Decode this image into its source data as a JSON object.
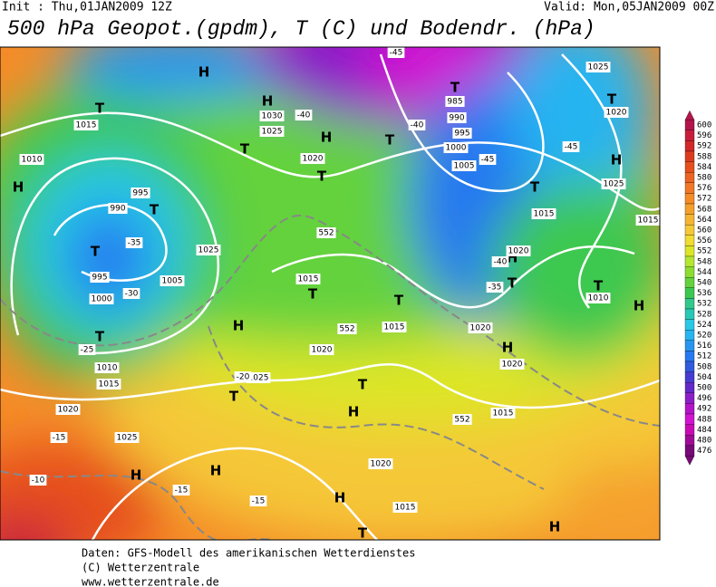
{
  "header": {
    "init": "Init : Thu,01JAN2009 12Z",
    "valid": "Valid: Mon,05JAN2009 00Z",
    "title": "500 hPa Geopot.(gpdm), T (C) und Bodendr. (hPa)"
  },
  "legend": {
    "levels": [
      600,
      596,
      592,
      588,
      584,
      580,
      576,
      572,
      568,
      564,
      560,
      556,
      552,
      548,
      544,
      540,
      536,
      532,
      528,
      524,
      520,
      516,
      512,
      508,
      504,
      500,
      496,
      492,
      488,
      484,
      480,
      476
    ],
    "colors": [
      "#b4144c",
      "#c81e3c",
      "#d22828",
      "#dc3c1e",
      "#e6501e",
      "#eb6423",
      "#f07828",
      "#f58c28",
      "#f5a02d",
      "#f5b432",
      "#f5c837",
      "#f0dc32",
      "#dce628",
      "#b4e632",
      "#8cdc32",
      "#64d23c",
      "#3cc850",
      "#32c88c",
      "#28c8b4",
      "#28c8e6",
      "#28b4f0",
      "#2896f0",
      "#2878f0",
      "#325adc",
      "#463cd2",
      "#6428c8",
      "#8c1ec8",
      "#b414c8",
      "#d214d2",
      "#c80ab4",
      "#a00a96",
      "#780a78"
    ]
  },
  "map": {
    "labels": [
      "H",
      "H",
      "T",
      "T",
      "985",
      "990",
      "995",
      "1000",
      "1005",
      "T",
      "H",
      "T",
      "T",
      "H",
      "T",
      "990",
      "995",
      "T",
      "995",
      "1000",
      "1005",
      "T",
      "1010",
      "1015",
      "1020",
      "1025",
      "H",
      "H",
      "H",
      "T",
      "1025",
      "1025",
      "1015",
      "T",
      "1020",
      "T",
      "1015",
      "H",
      "T",
      "1020",
      "H",
      "T",
      "1015",
      "H",
      "-10",
      "-15",
      "-15",
      "-15",
      "-20",
      "-25",
      "-30",
      "-35",
      "-40",
      "-40",
      "-45",
      "-45",
      "-45",
      "H",
      "T",
      "1020",
      "1025",
      "1025",
      "T",
      "1015",
      "H",
      "T",
      "1020",
      "-40",
      "-35",
      "1020",
      "H",
      "1020",
      "T",
      "1010",
      "H",
      "1015",
      "552",
      "552",
      "552",
      "1015",
      "1010",
      "1015",
      "1030",
      "1025",
      "1020"
    ]
  },
  "footer": {
    "lines": [
      "Daten: GFS-Modell des amerikanischen Wetterdienstes",
      "(C) Wetterzentrale",
      "www.wetterzentrale.de"
    ]
  }
}
